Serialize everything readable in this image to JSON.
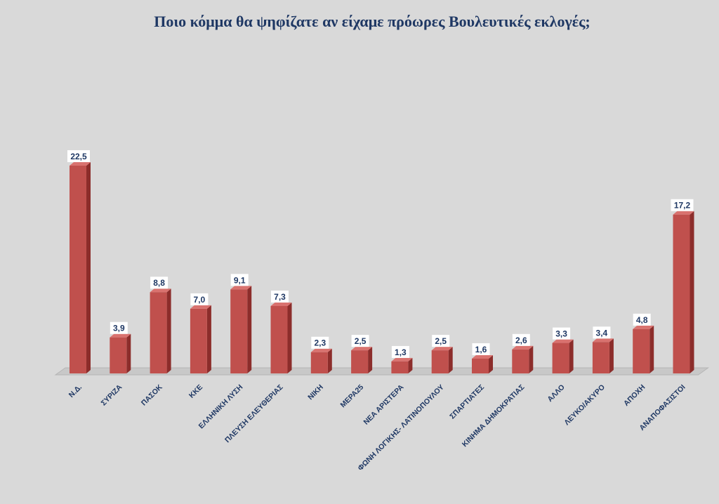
{
  "chart_data": {
    "type": "bar",
    "title": "Ποιο κόμμα θα ψηφίζατε αν είχαμε πρόωρες Βουλευτικές εκλογές;",
    "xlabel": "",
    "ylabel": "",
    "categories": [
      "Ν.Δ.",
      "ΣΥΡΙΖΑ",
      "ΠΑΣΟΚ",
      "ΚΚΕ",
      "ΕΛΛΗΝΙΚΗ ΛΥΣΗ",
      "ΠΛΕΥΣΗ ΕΛΕΥΘΕΡΙΑΣ",
      "ΝΙΚΗ",
      "ΜΕΡΑ25",
      "ΝΕΑ ΑΡΙΣΤΕΡΑ",
      "ΦΩΝΗ ΛΟΓΙΚΗΣ- ΛΑΤΙΝΟΠΟΥΛΟΥ",
      "ΣΠΑΡΤΙΑΤΕΣ",
      "ΚΙΝΗΜΑ ΔΗΜΟΚΡΑΤΙΑΣ",
      "ΑΛΛΟ",
      "ΛΕΥΚΟ/ΑΚΥΡΟ",
      "ΑΠΟΧΗ",
      "ΑΝΑΠΟΦΑΣΙΣΤΟΙ"
    ],
    "values": [
      22.5,
      3.9,
      8.8,
      7.0,
      9.1,
      7.3,
      2.3,
      2.5,
      1.3,
      2.5,
      1.6,
      2.6,
      3.3,
      3.4,
      4.8,
      17.2
    ],
    "value_labels": [
      "22,5",
      "3,9",
      "8,8",
      "7,0",
      "9,1",
      "7,3",
      "2,3",
      "2,5",
      "1,3",
      "2,5",
      "1,6",
      "2,6",
      "3,3",
      "3,4",
      "4,8",
      "17,2"
    ],
    "ylim": [
      0,
      22.5
    ],
    "grid": false,
    "legend": "none",
    "colors": {
      "bar_front": "#c0504d",
      "bar_side": "#8c2d2b",
      "bar_top": "#d9726f",
      "floor": "#c8c8c8",
      "label_color": "#1f3864",
      "background": "#d9d9d9"
    }
  }
}
